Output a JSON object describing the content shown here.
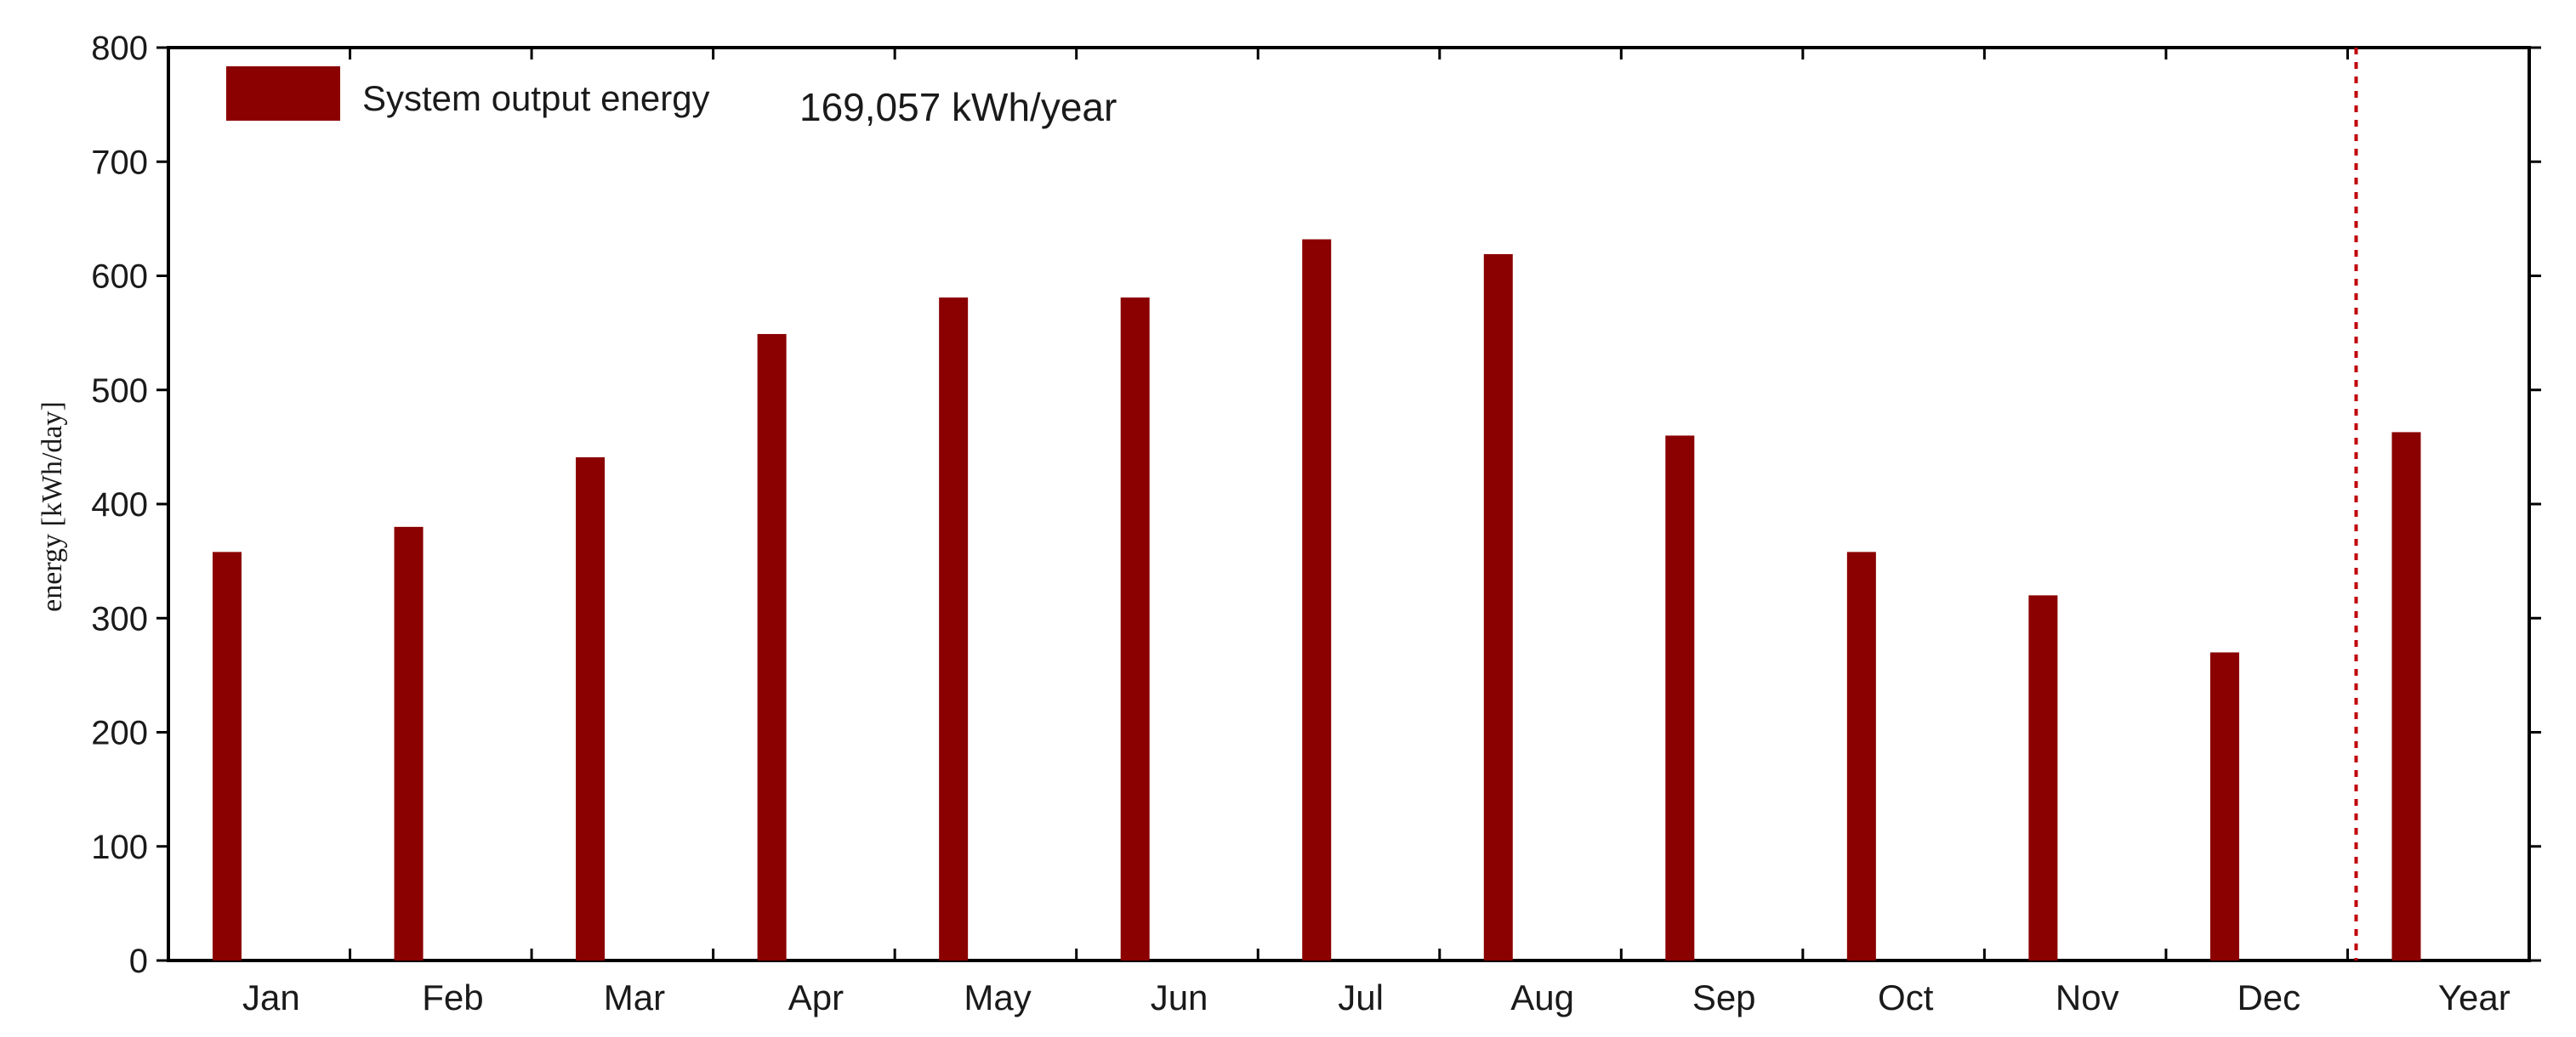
{
  "chart_data": {
    "type": "bar",
    "title": "",
    "xlabel": "",
    "ylabel": "energy  [kWh/day]",
    "ylim": [
      0,
      800
    ],
    "yticks": [
      0,
      100,
      200,
      300,
      400,
      500,
      600,
      700,
      800
    ],
    "categories": [
      "Jan",
      "Feb",
      "Mar",
      "Apr",
      "May",
      "Jun",
      "Jul",
      "Aug",
      "Sep",
      "Oct",
      "Nov",
      "Dec",
      "Year"
    ],
    "series": [
      {
        "name": "System output energy",
        "color": "#8b0000",
        "values": [
          358,
          380,
          441,
          549,
          581,
          581,
          632,
          619,
          460,
          358,
          320,
          270,
          463
        ]
      }
    ],
    "annotation": "169,057 kWh/year",
    "separator_before_category": "Year",
    "separator_color": "#c0000a",
    "grid": false,
    "legend_position": "top-left"
  }
}
